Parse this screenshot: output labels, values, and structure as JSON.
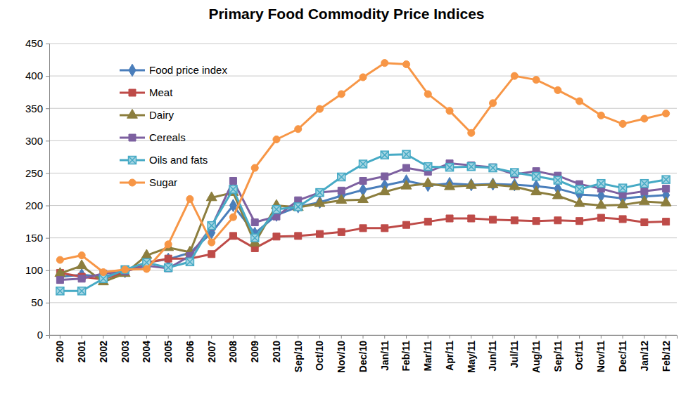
{
  "chart_data": {
    "type": "line",
    "title": "Primary Food Commodity Price Indices",
    "categories": [
      "2000",
      "2001",
      "2002",
      "2003",
      "2004",
      "2005",
      "2006",
      "2007",
      "2008",
      "2009",
      "2010",
      "Sep/10",
      "Oct/10",
      "Nov/10",
      "Dec/10",
      "Jan/11",
      "Feb/11",
      "Mar/11",
      "Apr/11",
      "May/11",
      "Jun/11",
      "Jul/11",
      "Aug/11",
      "Sep/11",
      "Oct/11",
      "Nov/11",
      "Dec/11",
      "Jan/12",
      "Feb/12"
    ],
    "series": [
      {
        "name": "Food price index",
        "color": "#4a7ebb",
        "marker": "diamond",
        "values": [
          90,
          93,
          90,
          98,
          112,
          117,
          127,
          158,
          200,
          157,
          185,
          198,
          205,
          215,
          224,
          231,
          238,
          231,
          234,
          232,
          233,
          232,
          230,
          226,
          217,
          215,
          211,
          214,
          216
        ]
      },
      {
        "name": "Meat",
        "color": "#be4b48",
        "marker": "square",
        "values": [
          96,
          90,
          86,
          97,
          112,
          118,
          118,
          125,
          153,
          134,
          152,
          153,
          156,
          159,
          165,
          165,
          170,
          175,
          180,
          180,
          178,
          177,
          176,
          177,
          176,
          181,
          179,
          174,
          175
        ]
      },
      {
        "name": "Dairy",
        "color": "#8c7e3e",
        "marker": "triangle",
        "values": [
          95,
          107,
          82,
          95,
          123,
          135,
          128,
          212,
          220,
          142,
          200,
          197,
          203,
          208,
          209,
          221,
          230,
          234,
          229,
          231,
          232,
          229,
          221,
          215,
          203,
          200,
          201,
          206,
          204
        ]
      },
      {
        "name": "Cereals",
        "color": "#7d60a0",
        "marker": "square",
        "values": [
          85,
          87,
          95,
          98,
          107,
          103,
          122,
          167,
          238,
          174,
          183,
          208,
          220,
          223,
          238,
          245,
          258,
          252,
          265,
          262,
          259,
          248,
          253,
          246,
          233,
          226,
          217,
          222,
          226
        ]
      },
      {
        "name": "Oils and fats",
        "color": "#46aac5",
        "marker": "x-square",
        "values": [
          68,
          68,
          87,
          101,
          112,
          104,
          113,
          169,
          225,
          150,
          194,
          198,
          220,
          244,
          264,
          278,
          279,
          260,
          259,
          260,
          258,
          251,
          245,
          239,
          225,
          234,
          227,
          234,
          240
        ]
      },
      {
        "name": "Sugar",
        "color": "#f79646",
        "marker": "circle",
        "values": [
          116,
          123,
          97,
          101,
          102,
          140,
          210,
          143,
          182,
          258,
          302,
          318,
          349,
          372,
          398,
          420,
          418,
          372,
          346,
          312,
          358,
          400,
          394,
          378,
          361,
          339,
          326,
          334,
          342
        ]
      }
    ],
    "ylim": [
      0,
      450
    ],
    "yticks": [
      0,
      50,
      100,
      150,
      200,
      250,
      300,
      350,
      400,
      450
    ],
    "grid": true,
    "legend": "top-left"
  }
}
